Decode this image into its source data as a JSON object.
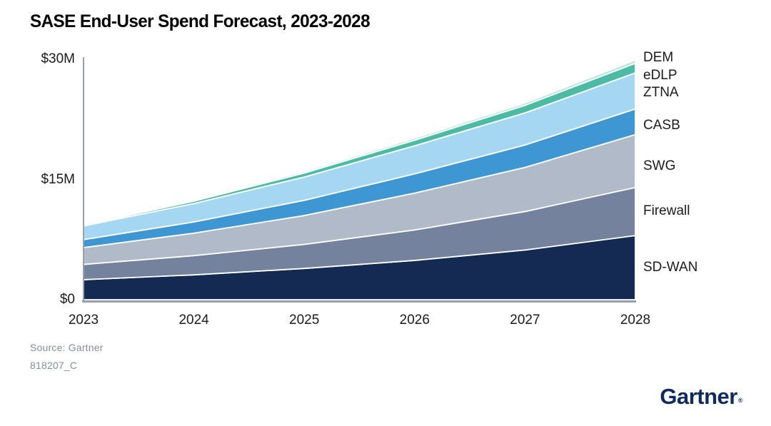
{
  "title": "SASE End-User Spend Forecast, 2023-2028",
  "source": {
    "line1": "Source: Gartner",
    "line2": "818207_C"
  },
  "logo": {
    "text": "Gartner",
    "reg": "®"
  },
  "chart_data": {
    "type": "area",
    "stacked": true,
    "title": "SASE End-User Spend Forecast, 2023-2028",
    "x": [
      2023,
      2024,
      2025,
      2026,
      2027,
      2028
    ],
    "x_labels": [
      "2023",
      "2024",
      "2025",
      "2026",
      "2027",
      "2028"
    ],
    "unit": "$M",
    "ylim": [
      0,
      30
    ],
    "y_ticks": [
      {
        "value": 0,
        "label": "$0"
      },
      {
        "value": 15,
        "label": "$15M"
      },
      {
        "value": 30,
        "label": "$30M"
      }
    ],
    "grid": false,
    "legend_position": "right-edge-labels",
    "series": [
      {
        "name": "SD-WAN",
        "color": "#152a52",
        "values": [
          2.5,
          3.1,
          3.9,
          4.9,
          6.2,
          8.0
        ]
      },
      {
        "name": "Firewall",
        "color": "#75829e",
        "values": [
          1.9,
          2.4,
          3.0,
          3.8,
          4.8,
          6.0
        ]
      },
      {
        "name": "SWG",
        "color": "#b1bac8",
        "values": [
          2.1,
          2.8,
          3.6,
          4.6,
          5.5,
          6.6
        ]
      },
      {
        "name": "CASB",
        "color": "#3e96d2",
        "values": [
          1.0,
          1.4,
          1.9,
          2.4,
          2.8,
          3.2
        ]
      },
      {
        "name": "ZTNA",
        "color": "#a6d7f2",
        "values": [
          1.7,
          2.3,
          2.9,
          3.5,
          4.0,
          4.5
        ]
      },
      {
        "name": "eDLP",
        "color": "#4cbaa4",
        "values": [
          0.1,
          0.3,
          0.5,
          0.7,
          0.95,
          1.2
        ]
      },
      {
        "name": "DEM",
        "color": "#b9e6da",
        "values": [
          0.1,
          0.15,
          0.2,
          0.25,
          0.3,
          0.4
        ]
      }
    ],
    "axis_color": "#97a0ab",
    "separator_color": "#ffffff"
  }
}
